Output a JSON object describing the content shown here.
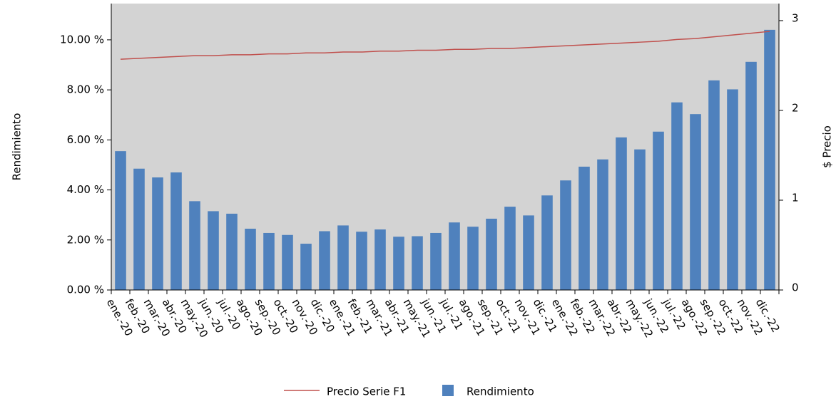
{
  "chart_data": {
    "type": "bar",
    "categories": [
      "ene.-20",
      "feb.-20",
      "mar.-20",
      "abr.-20",
      "may.-20",
      "jun.-20",
      "jul.-20",
      "ago.-20",
      "sep.-20",
      "oct.-20",
      "nov.-20",
      "dic.-20",
      "ene.-21",
      "feb.-21",
      "mar.-21",
      "abr.-21",
      "may.-21",
      "jun.-21",
      "jul.-21",
      "ago.-21",
      "sep.-21",
      "oct.-21",
      "nov.-21",
      "dic.-21",
      "ene.-22",
      "feb.-22",
      "mar.-22",
      "abr.-22",
      "may.-22",
      "jun.-22",
      "jul.-22",
      "ago.-22",
      "sep.-22",
      "oct.-22",
      "nov.-22",
      "dic.-22"
    ],
    "series": [
      {
        "name": "Precio Serie F1",
        "type": "line",
        "axis": "y2",
        "color": "#c0504d",
        "values": [
          2.57,
          2.58,
          2.59,
          2.6,
          2.61,
          2.61,
          2.62,
          2.62,
          2.63,
          2.63,
          2.64,
          2.64,
          2.65,
          2.65,
          2.66,
          2.66,
          2.67,
          2.67,
          2.68,
          2.68,
          2.69,
          2.69,
          2.7,
          2.71,
          2.72,
          2.73,
          2.74,
          2.75,
          2.76,
          2.77,
          2.79,
          2.8,
          2.82,
          2.84,
          2.86,
          2.88
        ]
      },
      {
        "name": "Rendimiento",
        "type": "bar",
        "color": "#4f81bd",
        "values": [
          5.55,
          4.85,
          4.5,
          4.7,
          3.55,
          3.15,
          3.05,
          2.45,
          2.28,
          2.2,
          1.85,
          2.35,
          2.58,
          2.33,
          2.42,
          2.13,
          2.15,
          2.28,
          2.7,
          2.53,
          2.85,
          3.33,
          2.98,
          3.78,
          4.38,
          4.93,
          5.22,
          6.1,
          5.62,
          6.33,
          7.5,
          7.03,
          8.38,
          8.02,
          9.12,
          10.4
        ]
      }
    ],
    "y_label": "Rendimiento",
    "y2_label": "$ Precio",
    "ylim": [
      0,
      11.45
    ],
    "yticks": [
      {
        "value": 0,
        "label": "0.00 %"
      },
      {
        "value": 2,
        "label": "2.00 %"
      },
      {
        "value": 4,
        "label": "4.00 %"
      },
      {
        "value": 6,
        "label": "6.00 %"
      },
      {
        "value": 8,
        "label": "8.00 %"
      },
      {
        "value": 10,
        "label": "10.00 %"
      }
    ],
    "y2lim": [
      0,
      3.19
    ],
    "y2ticks": [
      0,
      1,
      2,
      3
    ],
    "plot_background": "#d3d3d3",
    "legend": "bottom"
  }
}
